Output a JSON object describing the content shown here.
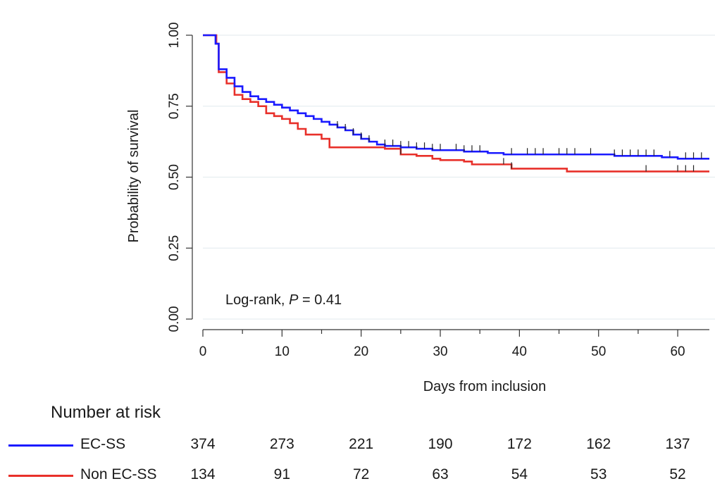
{
  "chart_data": {
    "type": "line",
    "subtype": "kaplan-meier",
    "xlabel": "Days from inclusion",
    "ylabel": "Probability of survival",
    "xlim": [
      0,
      64
    ],
    "ylim": [
      0,
      1
    ],
    "xticks": [
      "0",
      "10",
      "20",
      "30",
      "40",
      "50",
      "60"
    ],
    "xtick_values": [
      0,
      10,
      20,
      30,
      40,
      50,
      60
    ],
    "yticks": [
      "0.00",
      "0.25",
      "0.50",
      "0.75",
      "1.00"
    ],
    "ytick_values": [
      0,
      0.25,
      0.5,
      0.75,
      1.0
    ],
    "grid": "horizontal",
    "annotation": {
      "prefix": "Log-rank, ",
      "p_symbol": "P",
      "suffix": " = 0.41"
    },
    "series": [
      {
        "name": "EC-SS",
        "color": "#1a1aff",
        "steps": [
          [
            0,
            1.0
          ],
          [
            1,
            1.0
          ],
          [
            1.6,
            0.97
          ],
          [
            2,
            0.88
          ],
          [
            3,
            0.85
          ],
          [
            4,
            0.82
          ],
          [
            5,
            0.8
          ],
          [
            6,
            0.785
          ],
          [
            7,
            0.775
          ],
          [
            8,
            0.765
          ],
          [
            9,
            0.755
          ],
          [
            10,
            0.745
          ],
          [
            11,
            0.735
          ],
          [
            12,
            0.725
          ],
          [
            13,
            0.715
          ],
          [
            14,
            0.705
          ],
          [
            15,
            0.695
          ],
          [
            16,
            0.685
          ],
          [
            17,
            0.675
          ],
          [
            18,
            0.665
          ],
          [
            19,
            0.65
          ],
          [
            20,
            0.635
          ],
          [
            21,
            0.625
          ],
          [
            22,
            0.615
          ],
          [
            23,
            0.61
          ],
          [
            25,
            0.605
          ],
          [
            27,
            0.6
          ],
          [
            29,
            0.595
          ],
          [
            33,
            0.59
          ],
          [
            36,
            0.585
          ],
          [
            38,
            0.58
          ],
          [
            52,
            0.575
          ],
          [
            58,
            0.57
          ],
          [
            60,
            0.565
          ],
          [
            64,
            0.565
          ]
        ],
        "censor_times": [
          17,
          18,
          19,
          20,
          21,
          23,
          24,
          25,
          26,
          27,
          28,
          29,
          30,
          32,
          33,
          34,
          35,
          39,
          41,
          42,
          43,
          45,
          46,
          47,
          49,
          52,
          53,
          54,
          55,
          56,
          57,
          59,
          61,
          62,
          63
        ]
      },
      {
        "name": "Non EC-SS",
        "color": "#e8302a",
        "steps": [
          [
            0,
            1.0
          ],
          [
            1,
            1.0
          ],
          [
            1.7,
            0.97
          ],
          [
            2,
            0.87
          ],
          [
            3,
            0.83
          ],
          [
            4,
            0.79
          ],
          [
            5,
            0.775
          ],
          [
            6,
            0.765
          ],
          [
            7,
            0.75
          ],
          [
            8,
            0.725
          ],
          [
            9,
            0.715
          ],
          [
            10,
            0.705
          ],
          [
            11,
            0.69
          ],
          [
            12,
            0.67
          ],
          [
            13,
            0.65
          ],
          [
            15,
            0.635
          ],
          [
            16,
            0.605
          ],
          [
            23,
            0.6
          ],
          [
            25,
            0.58
          ],
          [
            27,
            0.575
          ],
          [
            29,
            0.565
          ],
          [
            30,
            0.56
          ],
          [
            33,
            0.555
          ],
          [
            34,
            0.545
          ],
          [
            39,
            0.53
          ],
          [
            46,
            0.52
          ],
          [
            64,
            0.52
          ]
        ],
        "censor_times": [
          25,
          38,
          39,
          56,
          60,
          61,
          62
        ]
      }
    ],
    "risk_table": {
      "title": "Number at risk",
      "times": [
        0,
        10,
        20,
        30,
        40,
        50,
        60
      ],
      "rows": [
        {
          "label": "EC-SS",
          "color": "#1a1aff",
          "values": [
            "374",
            "273",
            "221",
            "190",
            "172",
            "162",
            "137"
          ]
        },
        {
          "label": "Non EC-SS",
          "color": "#e8302a",
          "values": [
            "134",
            "91",
            "72",
            "63",
            "54",
            "53",
            "52"
          ]
        }
      ]
    }
  }
}
